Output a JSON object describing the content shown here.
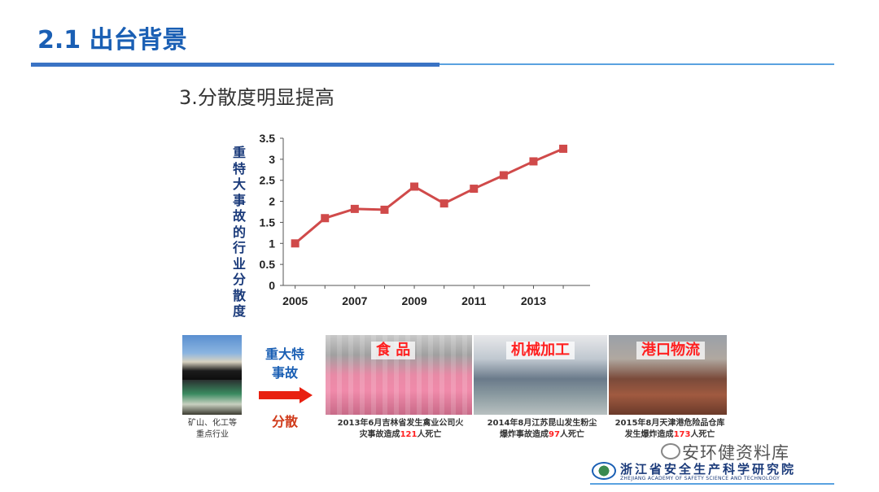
{
  "slide": {
    "title": "2.1 出台背景",
    "subtitle": "3.分散度明显提高"
  },
  "chart_data": {
    "type": "line",
    "title": "",
    "ylabel": "重特大事故的行业分散度",
    "xlabel": "",
    "x": [
      2005,
      2006,
      2007,
      2008,
      2009,
      2010,
      2011,
      2012,
      2013,
      2014
    ],
    "xtick_labels": [
      "2005",
      "2007",
      "2009",
      "2011",
      "2013"
    ],
    "xtick_values": [
      2005,
      2007,
      2009,
      2011,
      2013
    ],
    "ytick_labels": [
      "0",
      "0.5",
      "1",
      "1.5",
      "2",
      "2.5",
      "3",
      "3.5"
    ],
    "ylim": [
      0,
      3.5
    ],
    "series": [
      {
        "values": [
          1.0,
          1.6,
          1.82,
          1.8,
          2.35,
          1.95,
          2.3,
          2.62,
          2.95,
          3.25
        ],
        "color": "#d04a4a"
      }
    ],
    "grid": false,
    "legend": "none"
  },
  "images": {
    "mine_caption": "矿山、化工等\n重点行业",
    "arrow_top": "重大特\n事故",
    "arrow_bottom": "分散",
    "food_tag": "食  品",
    "food_caption_a": "2013年6月吉林省发生禽业公司火",
    "food_caption_b_pre": "灾事故造成",
    "food_caption_b_num": "121",
    "food_caption_b_post": "人死亡",
    "mach_tag": "机械加工",
    "mach_caption_a": "2014年8月江苏昆山发生粉尘",
    "mach_caption_b_pre": "爆炸事故造成",
    "mach_caption_b_num": "97",
    "mach_caption_b_post": "人死亡",
    "port_tag": "港口物流",
    "port_caption_a": "2015年8月天津港危险品仓库",
    "port_caption_b_pre": "发生爆炸造成",
    "port_caption_b_num": "173",
    "port_caption_b_post": "人死亡"
  },
  "footer": {
    "watermark": "安环健资料库",
    "org_cn": "浙江省安全生产科学研究院",
    "org_en": "ZHEJIANG ACADEMY OF SAFETY SCIENCE AND TECHNOLOGY"
  },
  "colors": {
    "title_blue": "#1a5fb4",
    "line_red": "#d04a4a",
    "number_red": "#ff2020"
  }
}
